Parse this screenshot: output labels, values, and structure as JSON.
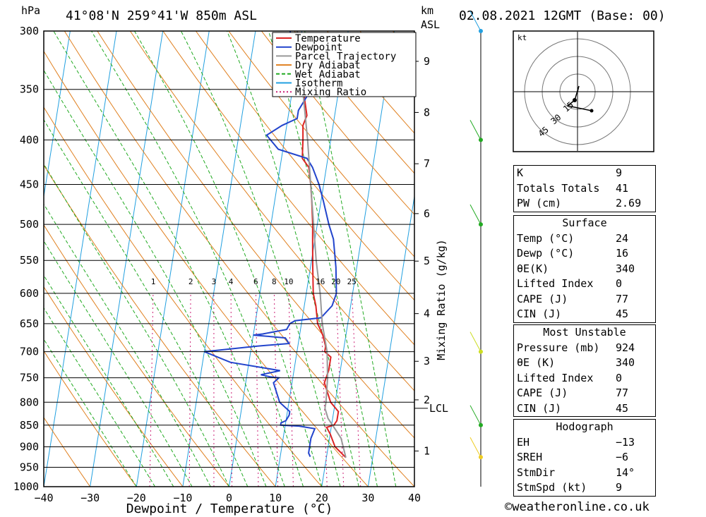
{
  "header": {
    "location": "41°08'N  259°41'W  850m  ASL",
    "datetime": "02.08.2021  12GMT  (Base: 00)",
    "pressure_unit": "hPa",
    "km_unit": "km",
    "asl_unit": "ASL"
  },
  "chart_data": {
    "type": "line",
    "title": "41°08'N  259°41'W  850m  ASL",
    "xlabel": "Dewpoint / Temperature (°C)",
    "ylabel": "hPa",
    "right_ylabel": "Mixing Ratio (g/kg)",
    "x_ticks": [
      "−40",
      "−30",
      "−20",
      "−10",
      "0",
      "10",
      "20",
      "30",
      "40"
    ],
    "xlim": [
      -40,
      40
    ],
    "pressure_levels": [
      300,
      350,
      400,
      450,
      500,
      550,
      600,
      650,
      700,
      750,
      800,
      850,
      900,
      950,
      1000
    ],
    "ylim": [
      1000,
      300
    ],
    "km_ticks": [
      {
        "label": "1",
        "p": 910
      },
      {
        "label": "2",
        "p": 795
      },
      {
        "label": "3",
        "p": 718
      },
      {
        "label": "4",
        "p": 633
      },
      {
        "label": "5",
        "p": 551
      },
      {
        "label": "6",
        "p": 486
      },
      {
        "label": "7",
        "p": 426
      },
      {
        "label": "8",
        "p": 372
      },
      {
        "label": "9",
        "p": 325
      }
    ],
    "lcl": {
      "label": "LCL",
      "p": 813
    },
    "mixing_ratio_labels": [
      "1",
      "2",
      "3",
      "4",
      "6",
      "8",
      "10",
      "16",
      "20",
      "25"
    ],
    "mixing_ratio_label_pressure": 590,
    "legend": [
      "Temperature",
      "Dewpoint",
      "Parcel Trajectory",
      "Dry Adiabat",
      "Wet Adiabat",
      "Isotherm",
      "Mixing Ratio"
    ],
    "legend_position": "top",
    "series": [
      {
        "name": "Temperature",
        "color": "#dd2222",
        "points": [
          [
            926,
            24.2
          ],
          [
            900,
            21.5
          ],
          [
            870,
            20
          ],
          [
            855,
            19
          ],
          [
            850,
            20.5
          ],
          [
            840,
            21
          ],
          [
            820,
            21
          ],
          [
            800,
            19
          ],
          [
            760,
            17
          ],
          [
            735,
            17.5
          ],
          [
            710,
            17.5
          ],
          [
            700,
            16
          ],
          [
            690,
            16
          ],
          [
            670,
            15
          ],
          [
            650,
            13.5
          ],
          [
            620,
            12.5
          ],
          [
            600,
            11.5
          ],
          [
            560,
            10.5
          ],
          [
            520,
            9.5
          ],
          [
            500,
            9
          ],
          [
            470,
            8
          ],
          [
            450,
            7.2
          ],
          [
            430,
            6.2
          ],
          [
            420,
            4.5
          ],
          [
            400,
            4
          ],
          [
            385,
            3.5
          ],
          [
            375,
            4
          ],
          [
            360,
            3
          ],
          [
            345,
            2
          ],
          [
            330,
            1.5
          ],
          [
            315,
            0.5
          ],
          [
            300,
            -1
          ]
        ]
      },
      {
        "name": "Dewpoint",
        "color": "#2244cc",
        "points": [
          [
            924,
            16.5
          ],
          [
            915,
            16
          ],
          [
            880,
            16
          ],
          [
            858,
            16.5
          ],
          [
            852,
            13
          ],
          [
            850,
            9
          ],
          [
            845,
            9
          ],
          [
            840,
            10
          ],
          [
            828,
            10.5
          ],
          [
            820,
            10.5
          ],
          [
            800,
            8
          ],
          [
            760,
            6
          ],
          [
            750,
            7
          ],
          [
            748,
            5
          ],
          [
            744,
            3
          ],
          [
            736,
            7
          ],
          [
            730,
            3
          ],
          [
            720,
            -4
          ],
          [
            700,
            -10
          ],
          [
            690,
            1
          ],
          [
            685,
            8
          ],
          [
            675,
            7
          ],
          [
            672,
            3
          ],
          [
            670,
            0
          ],
          [
            668,
            2
          ],
          [
            660,
            7
          ],
          [
            650,
            7.5
          ],
          [
            645,
            8.5
          ],
          [
            640,
            14
          ],
          [
            620,
            16
          ],
          [
            600,
            16.5
          ],
          [
            560,
            15.5
          ],
          [
            520,
            14
          ],
          [
            500,
            12.5
          ],
          [
            470,
            10.5
          ],
          [
            450,
            9
          ],
          [
            430,
            7
          ],
          [
            420,
            5.5
          ],
          [
            410,
            -1
          ],
          [
            400,
            -3
          ],
          [
            395,
            -4
          ],
          [
            385,
            -1
          ],
          [
            378,
            2
          ],
          [
            370,
            2
          ],
          [
            360,
            3
          ],
          [
            350,
            4
          ],
          [
            340,
            1
          ],
          [
            325,
            -2
          ],
          [
            310,
            -2
          ],
          [
            300,
            -2.5
          ]
        ]
      },
      {
        "name": "Parcel Trajectory",
        "color": "#999999",
        "points": [
          [
            926,
            24.2
          ],
          [
            880,
            22.5
          ],
          [
            860,
            21
          ],
          [
            835,
            19
          ],
          [
            813,
            18
          ],
          [
            800,
            18
          ],
          [
            750,
            17.5
          ],
          [
            700,
            16.5
          ],
          [
            650,
            14.5
          ],
          [
            600,
            13
          ],
          [
            550,
            11
          ],
          [
            500,
            9.2
          ],
          [
            450,
            7.2
          ],
          [
            400,
            5
          ],
          [
            350,
            2.2
          ],
          [
            300,
            -1
          ]
        ]
      }
    ]
  },
  "hodograph": {
    "unit": "kt",
    "ring_labels": [
      "15",
      "30",
      "45"
    ]
  },
  "wind_profile_levels_hpa": [
    300,
    400,
    500,
    700,
    850,
    925
  ],
  "indices": {
    "general": [
      {
        "k": "K",
        "v": "9"
      },
      {
        "k": "Totals Totals",
        "v": "41"
      },
      {
        "k": "PW (cm)",
        "v": "2.69"
      }
    ],
    "surface": {
      "title": "Surface",
      "rows": [
        {
          "k": "Temp (°C)",
          "v": "24"
        },
        {
          "k": "Dewp (°C)",
          "v": "16"
        },
        {
          "k": "θE(K)",
          "v": "340"
        },
        {
          "k": "Lifted Index",
          "v": "0"
        },
        {
          "k": "CAPE (J)",
          "v": "77"
        },
        {
          "k": "CIN (J)",
          "v": "45"
        }
      ]
    },
    "most_unstable": {
      "title": "Most Unstable",
      "rows": [
        {
          "k": "Pressure (mb)",
          "v": "924"
        },
        {
          "k": "θE (K)",
          "v": "340"
        },
        {
          "k": "Lifted Index",
          "v": "0"
        },
        {
          "k": "CAPE (J)",
          "v": "77"
        },
        {
          "k": "CIN (J)",
          "v": "45"
        }
      ]
    },
    "hodograph": {
      "title": "Hodograph",
      "rows": [
        {
          "k": "EH",
          "v": "−13"
        },
        {
          "k": "SREH",
          "v": "−6"
        },
        {
          "k": "StmDir",
          "v": "14°"
        },
        {
          "k": "StmSpd (kt)",
          "v": "9"
        }
      ]
    }
  },
  "credit": "©weatheronline.co.uk",
  "colors": {
    "temperature": "#dd2222",
    "dewpoint": "#2244cc",
    "parcel": "#999999",
    "dry_adiabat": "#e08020",
    "wet_adiabat": "#22aa22",
    "isotherm": "#22a0e0",
    "mixing_ratio": "#cc2277"
  }
}
